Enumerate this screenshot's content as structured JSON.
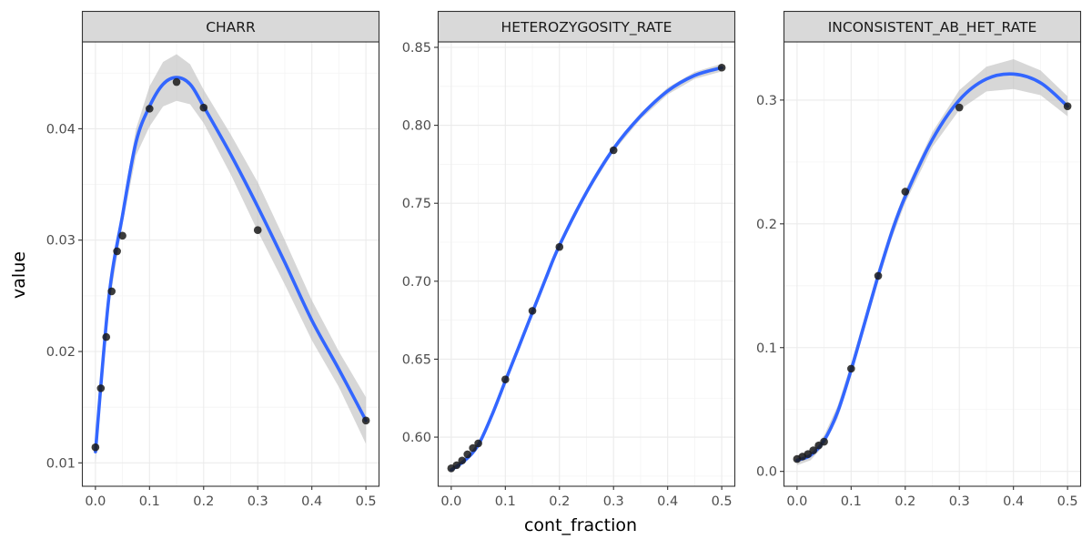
{
  "chart_data": {
    "type": "scatter",
    "facet_layout": "1 row, 3 columns, independent y scales",
    "xlabel": "cont_fraction",
    "ylabel": "value",
    "grid": true,
    "smooth": {
      "method": "loess",
      "color": "#3366FF",
      "ribbon_color": "#cccccc"
    },
    "colors": {
      "points": "#1a1a1a",
      "smooth": "#3366FF",
      "ribbon": "#bdbdbd",
      "strip_fill": "#d9d9d9",
      "panel_border": "#333333",
      "grid": "#ebebeb"
    },
    "x": [
      0,
      0.01,
      0.02,
      0.03,
      0.04,
      0.05,
      0.1,
      0.15,
      0.2,
      0.3,
      0.5
    ],
    "xlim": [
      -0.025,
      0.525
    ],
    "xticks": [
      "0.0",
      "0.1",
      "0.2",
      "0.3",
      "0.4",
      "0.5"
    ],
    "xtick_values": [
      0,
      0.1,
      0.2,
      0.3,
      0.4,
      0.5
    ],
    "panels": [
      {
        "title": "CHARR",
        "ylim": [
          0.0079,
          0.0478
        ],
        "yticks": [
          "0.01",
          "0.02",
          "0.03",
          "0.04"
        ],
        "ytick_values": [
          0.01,
          0.02,
          0.03,
          0.04
        ],
        "points": [
          0.0114,
          0.0167,
          0.0213,
          0.0254,
          0.029,
          0.0304,
          0.0418,
          0.0442,
          0.0419,
          0.0309,
          0.0138
        ],
        "smooth_x": [
          0,
          0.025,
          0.05,
          0.075,
          0.1,
          0.125,
          0.15,
          0.175,
          0.2,
          0.25,
          0.3,
          0.35,
          0.4,
          0.45,
          0.5
        ],
        "smooth_y": [
          0.011,
          0.0249,
          0.0322,
          0.0388,
          0.042,
          0.044,
          0.0446,
          0.044,
          0.042,
          0.0377,
          0.033,
          0.028,
          0.0228,
          0.0184,
          0.0138
        ],
        "smooth_se": [
          0.001,
          0.0008,
          0.0008,
          0.0012,
          0.0018,
          0.002,
          0.0021,
          0.0018,
          0.0015,
          0.0018,
          0.0022,
          0.002,
          0.0018,
          0.0016,
          0.0021
        ]
      },
      {
        "title": "HETEROZYGOSITY_RATE",
        "ylim": [
          0.5685,
          0.8535
        ],
        "yticks": [
          "0.60",
          "0.65",
          "0.70",
          "0.75",
          "0.80",
          "0.85"
        ],
        "ytick_values": [
          0.6,
          0.65,
          0.7,
          0.75,
          0.8,
          0.85
        ],
        "points": [
          0.58,
          0.582,
          0.585,
          0.589,
          0.593,
          0.596,
          0.637,
          0.681,
          0.722,
          0.784,
          0.837
        ],
        "smooth_x": [
          0,
          0.025,
          0.05,
          0.075,
          0.1,
          0.125,
          0.15,
          0.175,
          0.2,
          0.25,
          0.3,
          0.35,
          0.4,
          0.45,
          0.5
        ],
        "smooth_y": [
          0.579,
          0.585,
          0.595,
          0.614,
          0.636,
          0.658,
          0.68,
          0.702,
          0.723,
          0.757,
          0.785,
          0.806,
          0.822,
          0.832,
          0.837
        ],
        "smooth_se": [
          0.0015,
          0.0012,
          0.0012,
          0.0015,
          0.0016,
          0.0016,
          0.0016,
          0.0015,
          0.0015,
          0.0016,
          0.0018,
          0.002,
          0.0022,
          0.0022,
          0.0025
        ]
      },
      {
        "title": "INCONSISTENT_AB_HET_RATE",
        "ylim": [
          -0.012,
          0.347
        ],
        "yticks": [
          "0.0",
          "0.1",
          "0.2",
          "0.3"
        ],
        "ytick_values": [
          0.0,
          0.1,
          0.2,
          0.3
        ],
        "points": [
          0.01,
          0.012,
          0.014,
          0.017,
          0.021,
          0.024,
          0.083,
          0.158,
          0.226,
          0.294,
          0.295
        ],
        "smooth_x": [
          0,
          0.025,
          0.05,
          0.075,
          0.1,
          0.125,
          0.15,
          0.175,
          0.2,
          0.25,
          0.3,
          0.35,
          0.4,
          0.45,
          0.5
        ],
        "smooth_y": [
          0.009,
          0.013,
          0.025,
          0.048,
          0.082,
          0.12,
          0.158,
          0.193,
          0.222,
          0.268,
          0.3,
          0.317,
          0.321,
          0.314,
          0.295
        ],
        "smooth_se": [
          0.004,
          0.004,
          0.004,
          0.005,
          0.005,
          0.005,
          0.005,
          0.005,
          0.005,
          0.006,
          0.008,
          0.01,
          0.012,
          0.01,
          0.008
        ]
      }
    ]
  }
}
